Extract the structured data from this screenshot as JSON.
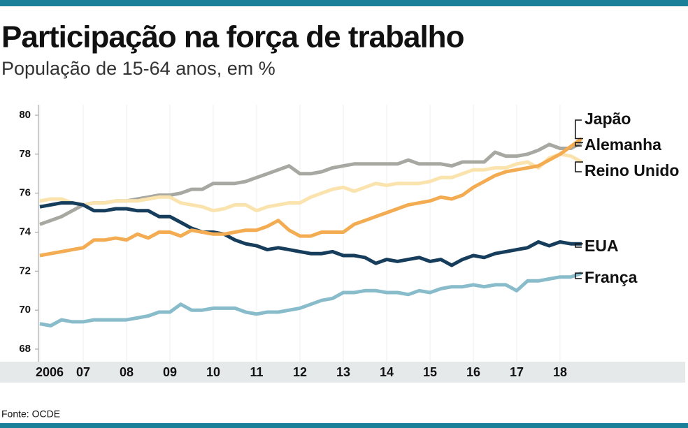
{
  "chart_data": {
    "type": "line",
    "title": "Participação na força de trabalho",
    "subtitle": "População de 15-64 anos, em %",
    "source": "Fonte: OCDE",
    "categories": [
      "2006",
      null,
      null,
      null,
      "07",
      null,
      null,
      null,
      "08",
      null,
      null,
      null,
      "09",
      null,
      null,
      null,
      "10",
      null,
      null,
      null,
      "11",
      null,
      null,
      null,
      "12",
      null,
      null,
      null,
      "13",
      null,
      null,
      null,
      "14",
      null,
      null,
      null,
      "15",
      null,
      null,
      null,
      "16",
      null,
      null,
      null,
      "17",
      null,
      null,
      null,
      "18",
      null,
      null
    ],
    "ylim": [
      68,
      80
    ],
    "yticks": [
      68,
      70,
      72,
      74,
      76,
      78,
      80
    ],
    "series": [
      {
        "name": "Japão",
        "color": "#f3ac52",
        "values": [
          72.8,
          72.9,
          73.0,
          73.1,
          73.2,
          73.6,
          73.6,
          73.7,
          73.6,
          73.9,
          73.7,
          74.0,
          74.0,
          73.8,
          74.1,
          74.0,
          73.9,
          73.9,
          74.0,
          74.1,
          74.1,
          74.3,
          74.6,
          74.1,
          73.8,
          73.8,
          74.0,
          74.0,
          74.0,
          74.4,
          74.6,
          74.8,
          75.0,
          75.2,
          75.4,
          75.5,
          75.6,
          75.8,
          75.7,
          75.9,
          76.3,
          76.6,
          76.9,
          77.1,
          77.2,
          77.3,
          77.4,
          77.7,
          78.0,
          78.4,
          78.8
        ]
      },
      {
        "name": "Alemanha",
        "color": "#a8a8a2",
        "values": [
          74.4,
          74.6,
          74.8,
          75.1,
          75.4,
          75.5,
          75.5,
          75.6,
          75.6,
          75.7,
          75.8,
          75.9,
          75.9,
          76.0,
          76.2,
          76.2,
          76.5,
          76.5,
          76.5,
          76.6,
          76.8,
          77.0,
          77.2,
          77.4,
          77.0,
          77.0,
          77.1,
          77.3,
          77.4,
          77.5,
          77.5,
          77.5,
          77.5,
          77.5,
          77.7,
          77.5,
          77.5,
          77.5,
          77.4,
          77.6,
          77.6,
          77.6,
          78.1,
          77.9,
          77.9,
          78.0,
          78.2,
          78.5,
          78.3,
          78.3,
          78.6
        ]
      },
      {
        "name": "Reino Unido",
        "color": "#fbe3ae",
        "values": [
          75.6,
          75.7,
          75.7,
          75.5,
          75.4,
          75.5,
          75.5,
          75.6,
          75.6,
          75.6,
          75.7,
          75.8,
          75.8,
          75.5,
          75.4,
          75.3,
          75.1,
          75.2,
          75.4,
          75.4,
          75.1,
          75.3,
          75.4,
          75.5,
          75.5,
          75.8,
          76.0,
          76.2,
          76.3,
          76.1,
          76.3,
          76.5,
          76.4,
          76.5,
          76.5,
          76.5,
          76.6,
          76.8,
          76.8,
          77.0,
          77.2,
          77.2,
          77.3,
          77.3,
          77.5,
          77.6,
          77.3,
          77.8,
          78.0,
          77.9,
          77.6
        ]
      },
      {
        "name": "EUA",
        "color": "#163d5c",
        "values": [
          75.3,
          75.4,
          75.5,
          75.5,
          75.4,
          75.1,
          75.1,
          75.2,
          75.2,
          75.1,
          75.1,
          74.8,
          74.8,
          74.5,
          74.2,
          74.0,
          74.0,
          73.9,
          73.6,
          73.4,
          73.3,
          73.1,
          73.2,
          73.1,
          73.0,
          72.9,
          72.9,
          73.0,
          72.8,
          72.8,
          72.7,
          72.4,
          72.6,
          72.5,
          72.6,
          72.7,
          72.5,
          72.6,
          72.3,
          72.6,
          72.8,
          72.7,
          72.9,
          73.0,
          73.1,
          73.2,
          73.5,
          73.3,
          73.5,
          73.4,
          73.4
        ]
      },
      {
        "name": "França",
        "color": "#88bccb",
        "values": [
          69.3,
          69.2,
          69.5,
          69.4,
          69.4,
          69.5,
          69.5,
          69.5,
          69.5,
          69.6,
          69.7,
          69.9,
          69.9,
          70.3,
          70.0,
          70.0,
          70.1,
          70.1,
          70.1,
          69.9,
          69.8,
          69.9,
          69.9,
          70.0,
          70.1,
          70.3,
          70.5,
          70.6,
          70.9,
          70.9,
          71.0,
          71.0,
          70.9,
          70.9,
          70.8,
          71.0,
          70.9,
          71.1,
          71.2,
          71.2,
          71.3,
          71.2,
          71.3,
          71.3,
          71.0,
          71.5,
          71.5,
          71.6,
          71.7,
          71.7,
          71.9
        ]
      }
    ]
  }
}
